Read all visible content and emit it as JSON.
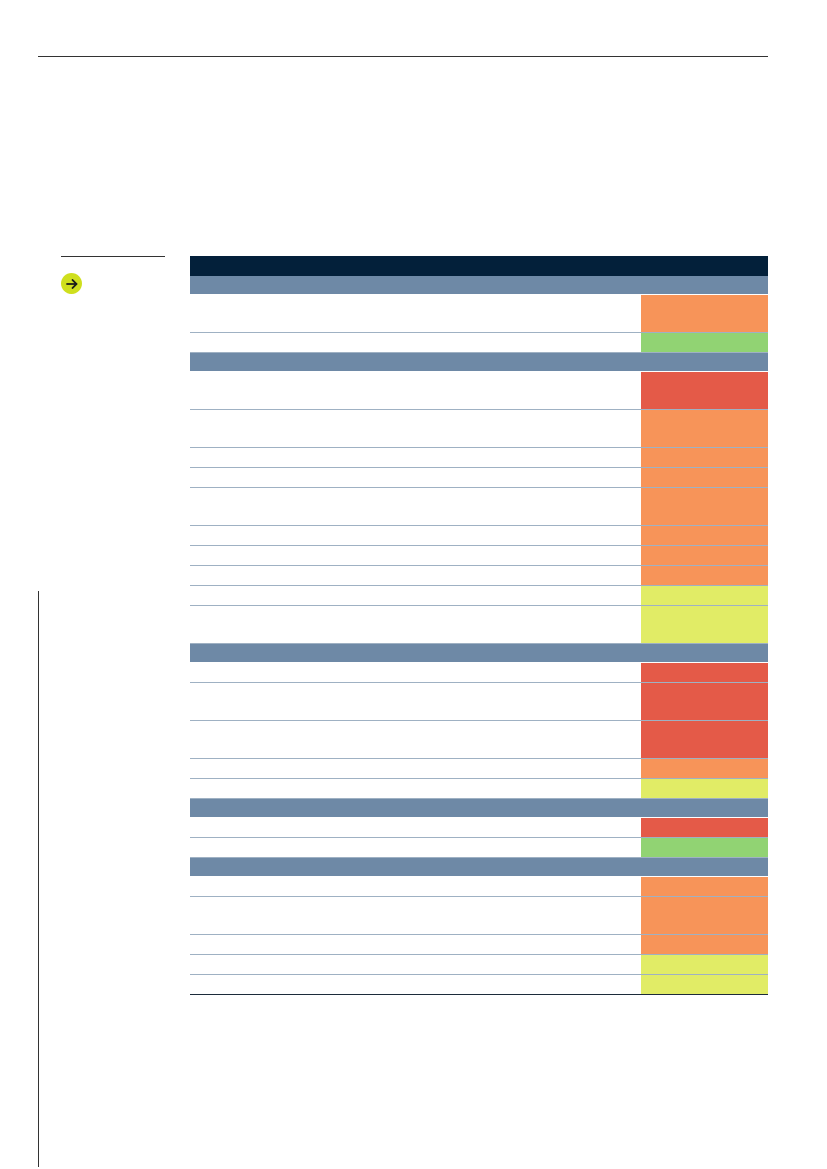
{
  "colors": {
    "header": "#03203a",
    "section": "#6e89a6",
    "badge": "#cfdf1e",
    "high": "#e45a48",
    "elevated": "#f79459",
    "moderate": "#e1ec66",
    "low": "#91d373"
  },
  "icons": {
    "badge": "arrow-right-icon"
  },
  "table": {
    "sections": [
      {
        "rows": [
          {
            "lines": 2,
            "rating": "elevated"
          },
          {
            "lines": 1,
            "rating": "low"
          }
        ]
      },
      {
        "rows": [
          {
            "lines": 2,
            "rating": "high"
          },
          {
            "lines": 2,
            "rating": "elevated"
          },
          {
            "lines": 1,
            "rating": "elevated"
          },
          {
            "lines": 1,
            "rating": "elevated"
          },
          {
            "lines": 2,
            "rating": "elevated"
          },
          {
            "lines": 1,
            "rating": "elevated"
          },
          {
            "lines": 1,
            "rating": "elevated"
          },
          {
            "lines": 1,
            "rating": "elevated"
          },
          {
            "lines": 1,
            "rating": "moderate"
          },
          {
            "lines": 2,
            "rating": "moderate"
          }
        ]
      },
      {
        "rows": [
          {
            "lines": 1,
            "rating": "high"
          },
          {
            "lines": 2,
            "rating": "high"
          },
          {
            "lines": 2,
            "rating": "high"
          },
          {
            "lines": 1,
            "rating": "elevated"
          },
          {
            "lines": 1,
            "rating": "moderate"
          }
        ]
      },
      {
        "rows": [
          {
            "lines": 1,
            "rating": "high"
          },
          {
            "lines": 1,
            "rating": "low"
          }
        ]
      },
      {
        "rows": [
          {
            "lines": 1,
            "rating": "elevated"
          },
          {
            "lines": 2,
            "rating": "elevated"
          },
          {
            "lines": 1,
            "rating": "elevated"
          },
          {
            "lines": 1,
            "rating": "moderate"
          },
          {
            "lines": 1,
            "rating": "moderate"
          }
        ]
      }
    ]
  }
}
